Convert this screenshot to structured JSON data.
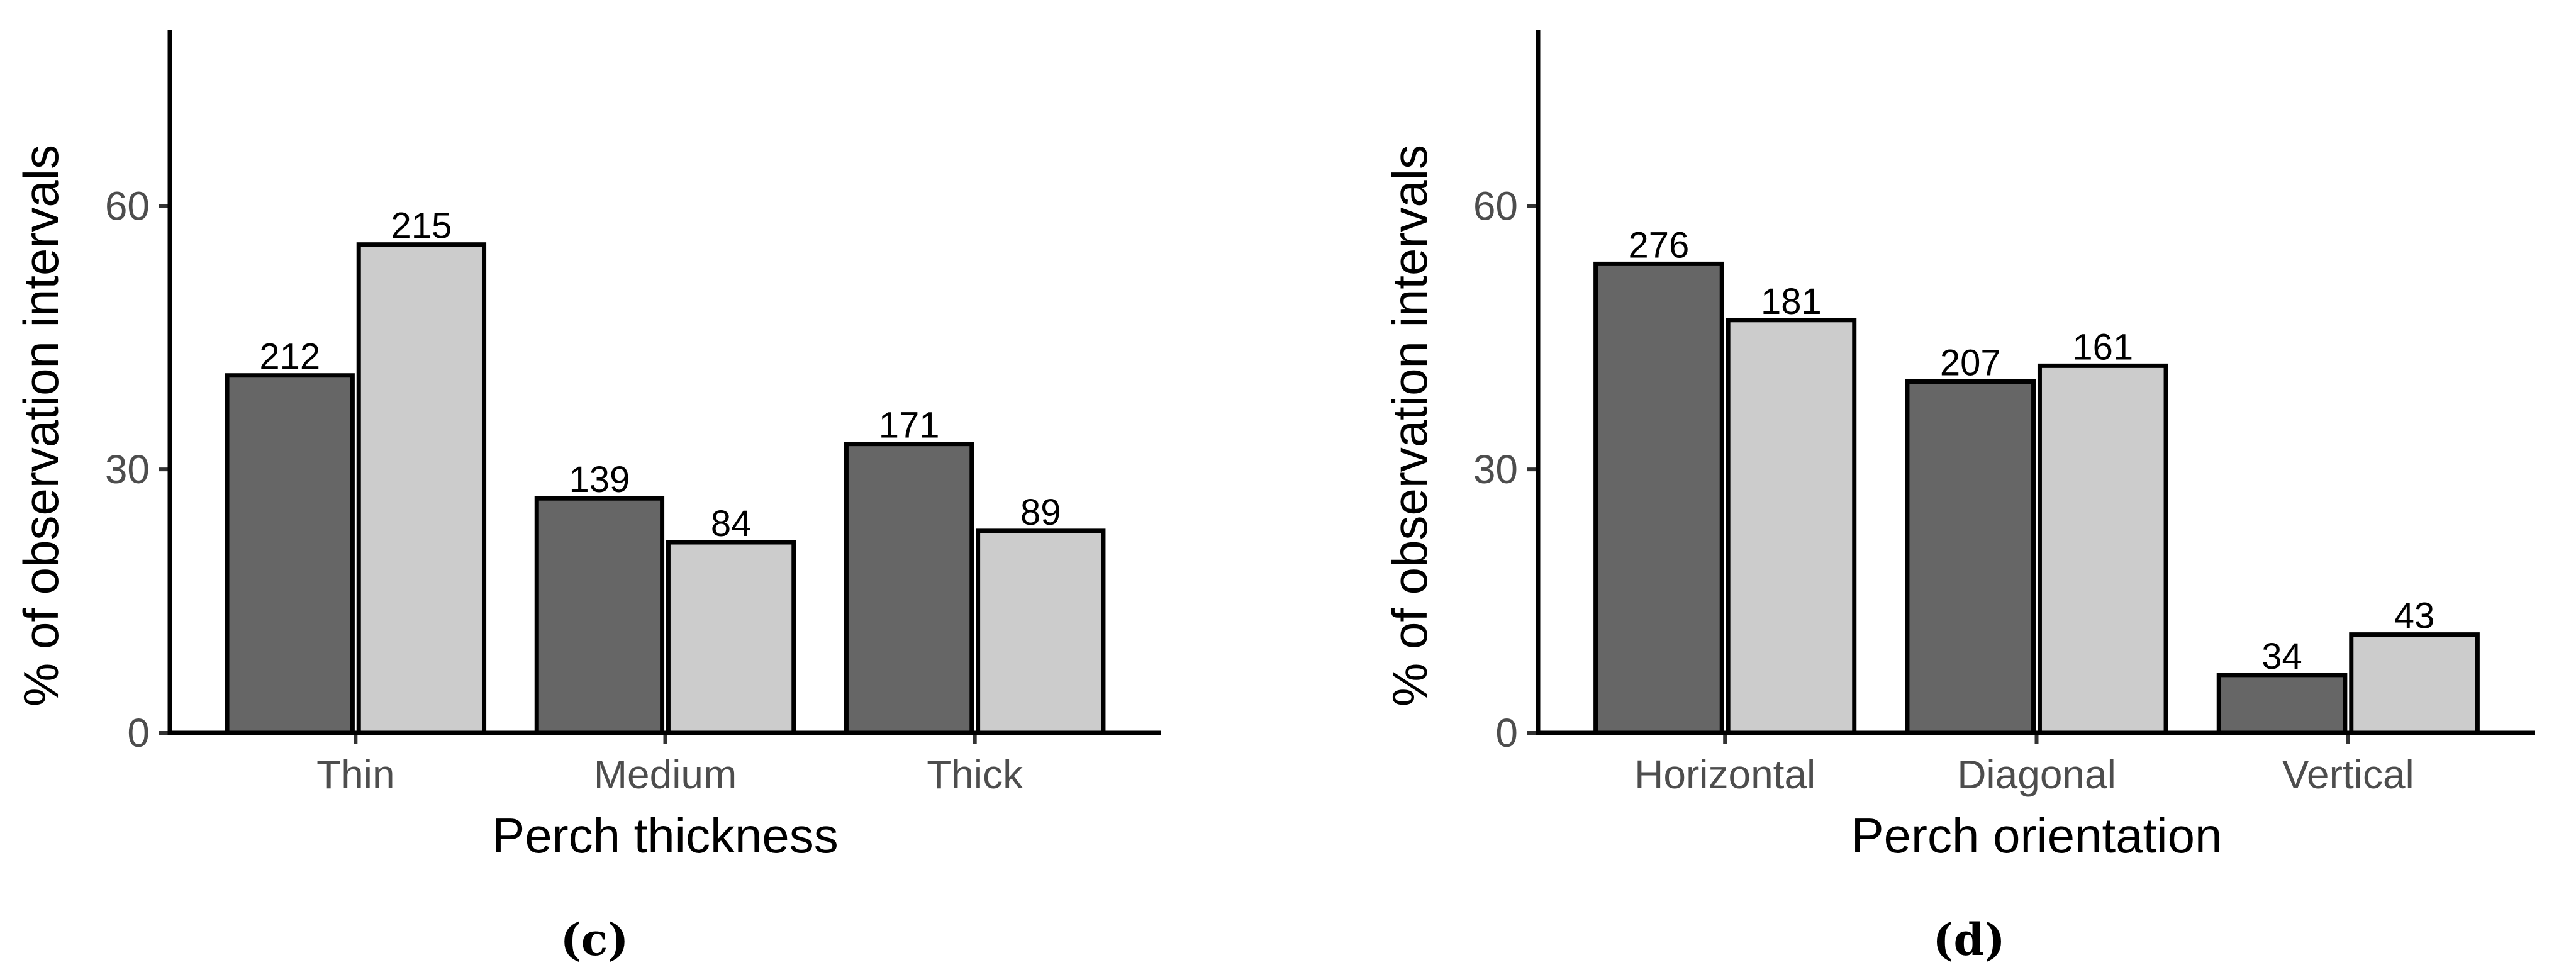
{
  "chart_data": [
    {
      "type": "bar",
      "panel_label": "(c)",
      "xlabel": "Perch thickness",
      "ylabel": "% of observation intervals",
      "ylim": [
        0,
        80
      ],
      "yticks": [
        0,
        30,
        60
      ],
      "categories": [
        "Thin",
        "Medium",
        "Thick"
      ],
      "series": [
        {
          "color": "#666666",
          "values": [
            40.7,
            26.7,
            32.9
          ],
          "labels": [
            "212",
            "139",
            "171"
          ]
        },
        {
          "color": "#cccccc",
          "values": [
            55.6,
            21.7,
            23.0
          ],
          "labels": [
            "215",
            "84",
            "89"
          ]
        }
      ],
      "grid": false,
      "legend": "none"
    },
    {
      "type": "bar",
      "panel_label": "(d)",
      "xlabel": "Perch orientation",
      "ylabel": "% of observation intervals",
      "ylim": [
        0,
        80
      ],
      "yticks": [
        0,
        30,
        60
      ],
      "categories": [
        "Horizontal",
        "Diagonal",
        "Vertical"
      ],
      "series": [
        {
          "color": "#666666",
          "values": [
            53.4,
            40.0,
            6.6
          ],
          "labels": [
            "276",
            "207",
            "34"
          ]
        },
        {
          "color": "#cccccc",
          "values": [
            47.0,
            41.8,
            11.2
          ],
          "labels": [
            "181",
            "161",
            "43"
          ]
        }
      ],
      "grid": false,
      "legend": "none"
    }
  ]
}
